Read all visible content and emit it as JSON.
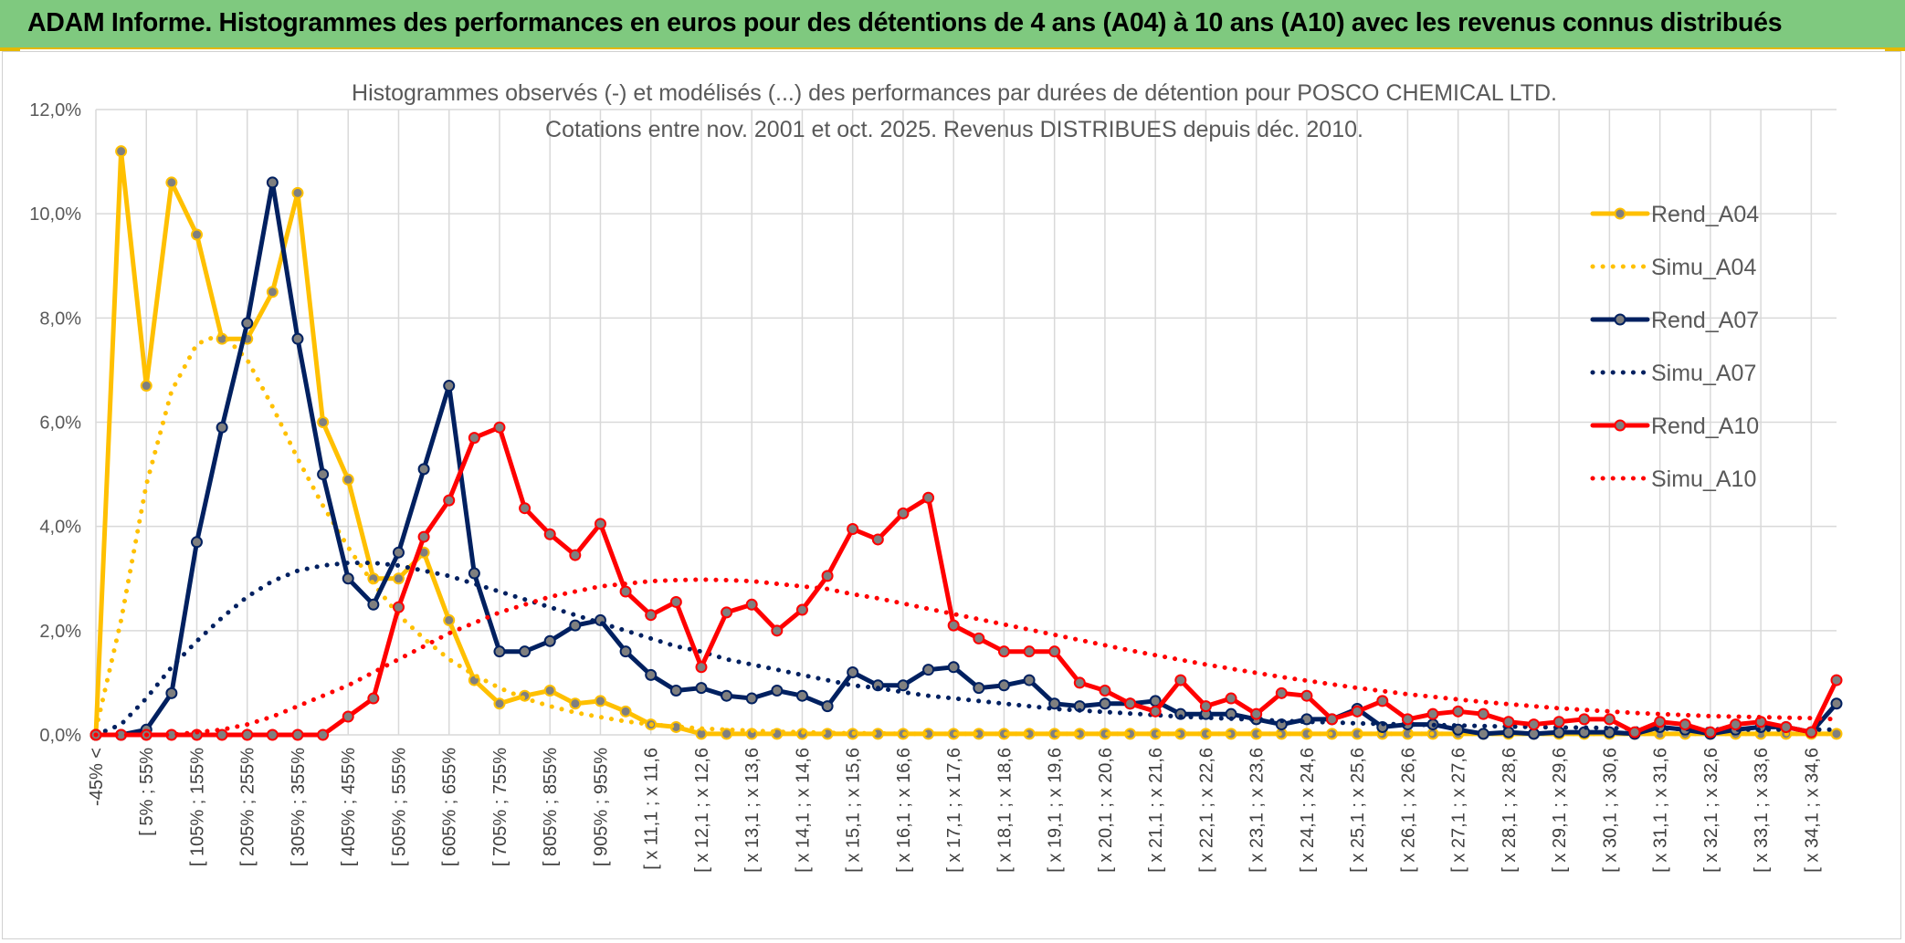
{
  "header": {
    "title": "ADAM Informe. Histogrammes des performances en euros pour des détentions de 4 ans (A04) à 10 ans (A10) avec les revenus connus distribués"
  },
  "chart_data": {
    "type": "line",
    "title": "Histogrammes observés (-) et modélisés (...) des performances par durées de détention pour POSCO CHEMICAL LTD.",
    "subtitle": "Cotations entre nov. 2001 et oct. 2025.  Revenus DISTRIBUES depuis déc. 2010.",
    "xlabel": "",
    "ylabel": "",
    "ylim": [
      0,
      12
    ],
    "yticks": [
      "0,0%",
      "2,0%",
      "4,0%",
      "6,0%",
      "8,0%",
      "10,0%",
      "12,0%"
    ],
    "grid": true,
    "legend_position": "right",
    "x_tick_labels": [
      "-45% <",
      "[ 5% ; 55%",
      "[ 105% ; 155%",
      "[ 205% ; 255%",
      "[ 305% ; 355%",
      "[ 405% ; 455%",
      "[ 505% ; 555%",
      "[ 605% ; 655%",
      "[ 705% ; 755%",
      "[ 805% ; 855%",
      "[ 905% ; 955%",
      "[ x 11,1 ; x 11,6",
      "[ x 12,1 ; x 12,6",
      "[ x 13,1 ; x 13,6",
      "[ x 14,1 ; x 14,6",
      "[ x 15,1 ; x 15,6",
      "[ x 16,1 ; x 16,6",
      "[ x 17,1 ; x 17,6",
      "[ x 18,1 ; x 18,6",
      "[ x 19,1 ; x 19,6",
      "[ x 20,1 ; x 20,6",
      "[ x 21,1 ; x 21,6",
      "[ x 22,1 ; x 22,6",
      "[ x 23,1 ; x 23,6",
      "[ x 24,1 ; x 24,6",
      "[ x 25,1 ; x 25,6",
      "[ x 26,1 ; x 26,6",
      "[ x 27,1 ; x 27,6",
      "[ x 28,1 ; x 28,6",
      "[ x 29,1 ; x 29,6",
      "[ x 30,1 ; x 30,6",
      "[ x 31,1 ; x 31,6",
      "[ x 32,1 ; x 32,6",
      "[ x 33,1 ; x 33,6",
      "[ x 34,1 ; x 34,6"
    ],
    "series": [
      {
        "name": "Rend_A04",
        "style": "solid",
        "color": "#ffc000",
        "values": [
          0,
          11.2,
          6.7,
          10.6,
          9.6,
          7.6,
          7.6,
          8.5,
          10.4,
          6.0,
          4.9,
          3.0,
          3.0,
          3.5,
          2.2,
          1.05,
          0.6,
          0.75,
          0.85,
          0.6,
          0.65,
          0.45,
          0.2,
          0.15,
          0.02,
          0.02,
          0.02,
          0.02,
          0.02,
          0.02,
          0.02,
          0.02,
          0.02,
          0.02,
          0.02,
          0.02,
          0.02,
          0.02,
          0.02,
          0.02,
          0.02,
          0.02,
          0.02,
          0.02,
          0.02,
          0.02,
          0.02,
          0.02,
          0.02,
          0.02,
          0.02,
          0.02,
          0.02,
          0.02,
          0.02,
          0.02,
          0.02,
          0.02,
          0.02,
          0.02,
          0.02,
          0.02,
          0.02,
          0.02,
          0.02,
          0.02,
          0.02,
          0.02,
          0.02,
          0.02
        ]
      },
      {
        "name": "Simu_A04",
        "style": "dotted",
        "color": "#ffc000",
        "values": [
          0.1,
          2.2,
          4.8,
          6.6,
          7.5,
          7.7,
          7.2,
          6.3,
          5.3,
          4.4,
          3.6,
          2.9,
          2.3,
          1.85,
          1.45,
          1.15,
          0.9,
          0.7,
          0.55,
          0.43,
          0.34,
          0.26,
          0.2,
          0.16,
          0.12,
          0.1,
          0.08,
          0.06,
          0.05,
          0.04,
          0.03,
          0.03,
          0.02,
          0.02,
          0.02,
          0.02,
          0.02,
          0.02,
          0.02,
          0.02,
          0.02,
          0.02,
          0.02,
          0.02,
          0.02,
          0.02,
          0.02,
          0.02,
          0.02,
          0.02,
          0.02,
          0.02,
          0.02,
          0.02,
          0.02,
          0.02,
          0.02,
          0.02,
          0.02,
          0.02,
          0.02,
          0.02,
          0.02,
          0.02,
          0.02,
          0.02,
          0.02,
          0.02,
          0.02,
          0.02
        ]
      },
      {
        "name": "Rend_A07",
        "style": "solid",
        "color": "#002060",
        "values": [
          0,
          0,
          0.1,
          0.8,
          3.7,
          5.9,
          7.9,
          10.6,
          7.6,
          5.0,
          3.0,
          2.5,
          3.5,
          5.1,
          6.7,
          3.1,
          1.6,
          1.6,
          1.8,
          2.1,
          2.2,
          1.6,
          1.15,
          0.85,
          0.9,
          0.75,
          0.7,
          0.85,
          0.75,
          0.55,
          1.2,
          0.95,
          0.95,
          1.25,
          1.3,
          0.9,
          0.95,
          1.05,
          0.6,
          0.55,
          0.6,
          0.6,
          0.65,
          0.4,
          0.4,
          0.4,
          0.3,
          0.2,
          0.3,
          0.3,
          0.5,
          0.15,
          0.2,
          0.2,
          0.1,
          0.02,
          0.05,
          0.02,
          0.05,
          0.05,
          0.05,
          0.02,
          0.15,
          0.1,
          0.02,
          0.1,
          0.15,
          0.15,
          0.05,
          0.6
        ]
      },
      {
        "name": "Simu_A07",
        "style": "dotted",
        "color": "#002060",
        "values": [
          0,
          0.2,
          0.7,
          1.3,
          1.8,
          2.25,
          2.65,
          2.95,
          3.15,
          3.25,
          3.3,
          3.3,
          3.25,
          3.15,
          3.05,
          2.9,
          2.75,
          2.6,
          2.45,
          2.3,
          2.15,
          2.0,
          1.85,
          1.7,
          1.6,
          1.45,
          1.35,
          1.25,
          1.15,
          1.05,
          0.95,
          0.9,
          0.82,
          0.75,
          0.7,
          0.65,
          0.6,
          0.55,
          0.5,
          0.47,
          0.44,
          0.41,
          0.38,
          0.35,
          0.33,
          0.31,
          0.29,
          0.27,
          0.25,
          0.24,
          0.22,
          0.21,
          0.2,
          0.19,
          0.18,
          0.17,
          0.16,
          0.15,
          0.14,
          0.14,
          0.13,
          0.12,
          0.12,
          0.11,
          0.11,
          0.1,
          0.1,
          0.1,
          0.1,
          0.1
        ]
      },
      {
        "name": "Rend_A10",
        "style": "solid",
        "color": "#ff0000",
        "values": [
          0,
          0,
          0,
          0,
          0,
          0,
          0,
          0,
          0,
          0,
          0.35,
          0.7,
          2.45,
          3.8,
          4.5,
          5.7,
          5.9,
          4.35,
          3.85,
          3.45,
          4.05,
          2.75,
          2.3,
          2.55,
          1.3,
          2.35,
          2.5,
          2.0,
          2.4,
          3.05,
          3.95,
          3.75,
          4.25,
          4.55,
          2.1,
          1.85,
          1.6,
          1.6,
          1.6,
          1.0,
          0.85,
          0.6,
          0.45,
          1.05,
          0.55,
          0.7,
          0.4,
          0.8,
          0.75,
          0.3,
          0.45,
          0.65,
          0.3,
          0.4,
          0.45,
          0.4,
          0.25,
          0.2,
          0.25,
          0.3,
          0.3,
          0.05,
          0.25,
          0.2,
          0.05,
          0.2,
          0.25,
          0.15,
          0.05,
          1.05
        ]
      },
      {
        "name": "Simu_A10",
        "style": "dotted",
        "color": "#ff0000",
        "values": [
          0,
          0,
          0,
          0,
          0.05,
          0.1,
          0.2,
          0.35,
          0.55,
          0.75,
          0.95,
          1.2,
          1.45,
          1.7,
          1.95,
          2.15,
          2.35,
          2.5,
          2.65,
          2.75,
          2.85,
          2.9,
          2.95,
          2.97,
          2.98,
          2.97,
          2.95,
          2.9,
          2.85,
          2.8,
          2.7,
          2.62,
          2.52,
          2.42,
          2.32,
          2.22,
          2.12,
          2.02,
          1.92,
          1.82,
          1.72,
          1.62,
          1.53,
          1.44,
          1.35,
          1.27,
          1.19,
          1.11,
          1.04,
          0.97,
          0.9,
          0.84,
          0.78,
          0.73,
          0.68,
          0.63,
          0.59,
          0.55,
          0.51,
          0.48,
          0.45,
          0.42,
          0.4,
          0.38,
          0.36,
          0.35,
          0.34,
          0.33,
          0.32,
          0.3
        ]
      }
    ]
  }
}
